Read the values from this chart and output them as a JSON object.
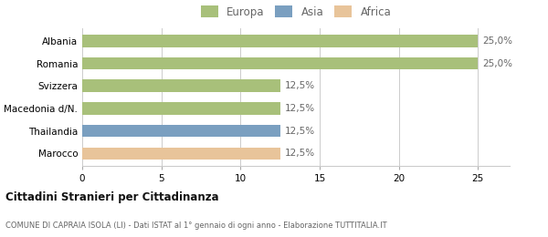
{
  "categories": [
    "Albania",
    "Romania",
    "Svizzera",
    "Macedonia d/N.",
    "Thailandia",
    "Marocco"
  ],
  "values": [
    25.0,
    25.0,
    12.5,
    12.5,
    12.5,
    12.5
  ],
  "colors": [
    "#a8c07a",
    "#a8c07a",
    "#a8c07a",
    "#a8c07a",
    "#7a9fc0",
    "#e8c49a"
  ],
  "bar_labels": [
    "25,0%",
    "25,0%",
    "12,5%",
    "12,5%",
    "12,5%",
    "12,5%"
  ],
  "legend": [
    {
      "label": "Europa",
      "color": "#a8c07a"
    },
    {
      "label": "Asia",
      "color": "#7a9fc0"
    },
    {
      "label": "Africa",
      "color": "#e8c49a"
    }
  ],
  "xlim": [
    0,
    27
  ],
  "xticks": [
    0,
    5,
    10,
    15,
    20,
    25
  ],
  "title_bold": "Cittadini Stranieri per Cittadinanza",
  "subtitle": "COMUNE DI CAPRAIA ISOLA (LI) - Dati ISTAT al 1° gennaio di ogni anno - Elaborazione TUTTITALIA.IT",
  "background_color": "#ffffff",
  "grid_color": "#cccccc",
  "bar_label_fontsize": 7.5,
  "axis_fontsize": 7.5,
  "legend_fontsize": 8.5
}
